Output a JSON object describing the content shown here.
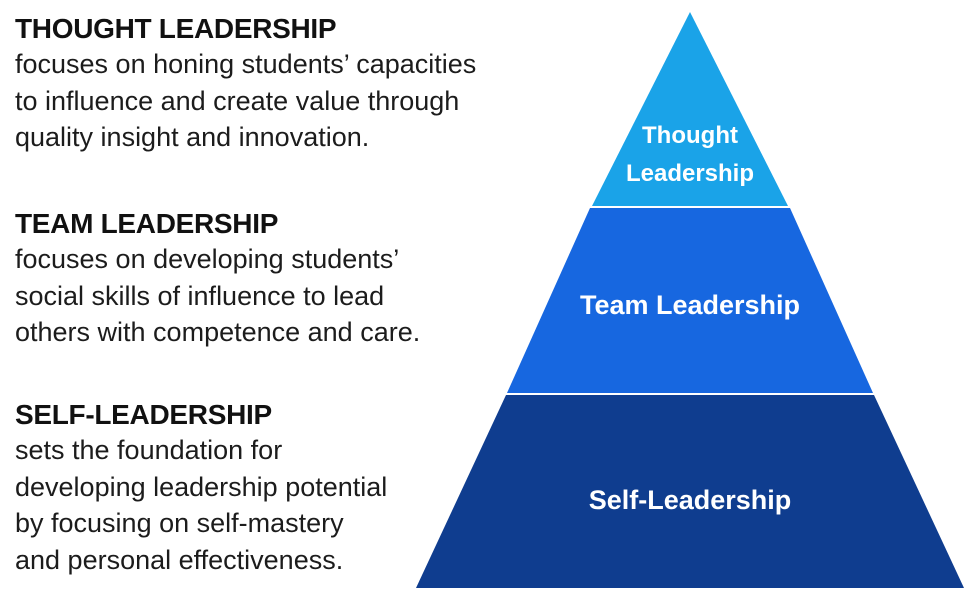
{
  "descriptions": [
    {
      "title": "THOUGHT LEADERSHIP",
      "lines": [
        "focuses on honing students’ capacities",
        "to influence and create value through",
        "quality insight and innovation."
      ]
    },
    {
      "title": "TEAM LEADERSHIP",
      "lines": [
        "focuses on developing students’",
        "social skills of influence to lead",
        "others with competence and care."
      ]
    },
    {
      "title": "SELF-LEADERSHIP",
      "lines": [
        "sets the foundation for",
        "developing leadership potential",
        "by focusing on self-mastery",
        "and personal effectiveness."
      ]
    }
  ],
  "pyramid": {
    "tiers": [
      {
        "label_lines": [
          "Thought",
          "Leadership"
        ],
        "color": "#1aa3e8"
      },
      {
        "label_lines": [
          "Team Leadership"
        ],
        "color": "#1767e0"
      },
      {
        "label_lines": [
          "Self-Leadership"
        ],
        "color": "#0f3d8f"
      }
    ]
  }
}
